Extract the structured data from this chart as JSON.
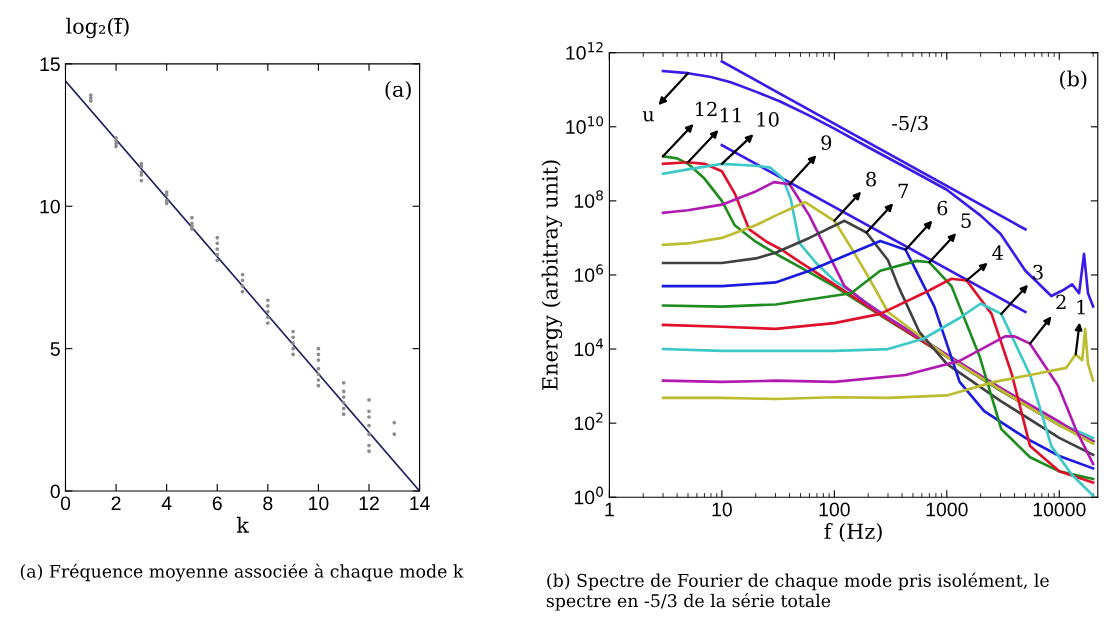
{
  "chart_data": [
    {
      "type": "scatter",
      "xlabel": "k",
      "ylabel": "log₂(f̄)",
      "xlim": [
        0,
        14
      ],
      "ylim": [
        0,
        15
      ],
      "xticks": [
        0,
        2,
        4,
        6,
        8,
        10,
        12,
        14
      ],
      "yticks": [
        0,
        5,
        10,
        15
      ],
      "grid": false,
      "legend": false,
      "annotations": [
        "(a)",
        "(a) Fréquence moyenne associée à chaque mode k"
      ],
      "series": [
        {
          "type": "scatter",
          "marker": "circle",
          "color": "#8c8c8c",
          "x": [
            1,
            1,
            1,
            2,
            2,
            2,
            2,
            3,
            3,
            3,
            3,
            3,
            4,
            4,
            4,
            4,
            5,
            5,
            5,
            5,
            6,
            6,
            6,
            6,
            6,
            7,
            7,
            7,
            7,
            8,
            8,
            8,
            8,
            8,
            9,
            9,
            9,
            9,
            9,
            10,
            10,
            10,
            10,
            10,
            10,
            10,
            11,
            11,
            11,
            11,
            11,
            11,
            12,
            12,
            12,
            12,
            12,
            12,
            12,
            13,
            13
          ],
          "values": [
            13.7,
            13.8,
            13.9,
            12.1,
            12.2,
            12.3,
            12.4,
            10.9,
            11.1,
            11.2,
            11.4,
            11.5,
            10.1,
            10.2,
            10.4,
            10.5,
            9.2,
            9.3,
            9.4,
            9.6,
            8.1,
            8.3,
            8.5,
            8.7,
            8.9,
            7.0,
            7.2,
            7.4,
            7.6,
            5.9,
            6.1,
            6.3,
            6.5,
            6.7,
            4.8,
            5.0,
            5.2,
            5.4,
            5.6,
            3.7,
            3.9,
            4.1,
            4.3,
            4.6,
            4.8,
            5.0,
            2.7,
            2.9,
            3.1,
            3.3,
            3.5,
            3.8,
            1.4,
            1.6,
            2.0,
            2.3,
            2.6,
            2.8,
            3.2,
            2.0,
            2.4
          ]
        },
        {
          "type": "line",
          "color": "#1f1f5f",
          "x": [
            0,
            14
          ],
          "values": [
            14.4,
            0
          ]
        }
      ]
    },
    {
      "type": "line",
      "log": "xy",
      "xlabel": "f (Hz)",
      "ylabel": "Energy (arbitray unit)",
      "xlim": [
        1,
        22000
      ],
      "ylim": [
        1,
        1000000000000.0
      ],
      "grid": false,
      "legend": false,
      "xticks": [
        1,
        10,
        100,
        1000,
        10000
      ],
      "yticks": [
        {
          "value": 1,
          "label": "10$^{0}$"
        },
        {
          "value": 100,
          "label": "10$^{2}$"
        },
        {
          "value": 10000,
          "label": "10$^{4}$"
        },
        {
          "value": 1000000,
          "label": "10$^{6}$"
        },
        {
          "value": 100000000,
          "label": "10$^{8}$"
        },
        {
          "value": 10000000000,
          "label": "10$^{10}$"
        },
        {
          "value": 1000000000000,
          "label": "10$^{12}$"
        }
      ],
      "annotations": [
        "(b)",
        {
          "text": "u",
          "x": 5,
          "y": 280000000000.0
        },
        {
          "text": "12",
          "x": 3,
          "y": 1600000000.0
        },
        {
          "text": "11",
          "x": 5,
          "y": 1100000000.0
        },
        {
          "text": "10",
          "x": 10,
          "y": 1000000000.0
        },
        {
          "text": "9",
          "x": 40,
          "y": 280000000.0
        },
        {
          "text": "8",
          "x": 100,
          "y": 29000000.0
        },
        {
          "text": "7",
          "x": 193,
          "y": 14000000.0
        },
        {
          "text": "6",
          "x": 430,
          "y": 4800000.0
        },
        {
          "text": "5",
          "x": 700,
          "y": 2200000.0
        },
        {
          "text": "4",
          "x": 1500,
          "y": 710000.0
        },
        {
          "text": "3",
          "x": 3050,
          "y": 89000.0
        },
        {
          "text": "2",
          "x": 5500,
          "y": 14000.0
        },
        {
          "text": "1",
          "x": 14000,
          "y": 7200.0
        },
        "-5/3",
        "(b) Spectre de Fourier de chaque mode pris isolément, le spectre en -5/3 de la série totale"
      ],
      "series": [
        {
          "color": "#3a1ae8",
          "x": [
            3,
            5,
            8,
            12,
            20,
            33,
            60,
            100,
            200,
            500,
            1000,
            2000,
            3000,
            5000,
            8500,
            11000,
            13000,
            15000,
            16600,
            18000,
            20000
          ],
          "values": [
            320000000000.0,
            280000000000.0,
            220000000000.0,
            160000000000.0,
            89000000000.0,
            48000000000.0,
            20000000000.0,
            8900000000.0,
            2800000000.0,
            630000000.0,
            200000000.0,
            40000000.0,
            13000000.0,
            1300000.0,
            270000.0,
            400000.0,
            560000.0,
            320000.0,
            3700000.0,
            320000.0,
            140000.0
          ]
        },
        {
          "color": "#3a1ae8",
          "x": [
            10,
            5000
          ],
          "values": [
            580000000000.0,
            17000000.0
          ]
        },
        {
          "color": "#3a1ae8",
          "x": [
            10,
            5000
          ],
          "values": [
            3200000000.0,
            100000.0
          ]
        },
        {
          "color": "#1e8c1e",
          "x": [
            3,
            4,
            5,
            7,
            10,
            13,
            20,
            33,
            50,
            100,
            300,
            1000,
            3000,
            10000,
            20000
          ],
          "values": [
            1600000000.0,
            1400000000.0,
            1000000000.0,
            400000000.0,
            100000000.0,
            22000000.0,
            7900000.0,
            3200000.0,
            1600000.0,
            490000.0,
            60000.0,
            6200.0,
            760.0,
            89,
            32
          ]
        },
        {
          "color": "#e0102a",
          "x": [
            3,
            5,
            7,
            10,
            13,
            17.5,
            25,
            34,
            50,
            100,
            300,
            1000,
            3000,
            10000,
            20000
          ],
          "values": [
            1000000000.0,
            1100000000.0,
            1000000000.0,
            630000000.0,
            160000000.0,
            17000000.0,
            7900000.0,
            4800000.0,
            2200000.0,
            560000.0,
            63000.0,
            6300.0,
            790.0,
            89,
            32
          ]
        },
        {
          "color": "#3cc8c8",
          "x": [
            3,
            5,
            10,
            20,
            27,
            35,
            41,
            49,
            70,
            100,
            300,
            1000,
            3000,
            10000,
            20000
          ],
          "values": [
            540000000.0,
            710000000.0,
            1000000000.0,
            890000000.0,
            790000000.0,
            400000000.0,
            110000000.0,
            7200000.0,
            2000000.0,
            710000.0,
            71000.0,
            7100.0,
            890.0,
            100,
            40
          ]
        },
        {
          "color": "#b01ab0",
          "x": [
            3,
            5,
            10,
            20,
            29,
            40,
            60,
            123,
            200,
            300,
            1000,
            3000,
            10000,
            15000,
            20000
          ],
          "values": [
            48000000.0,
            56000000.0,
            79000000.0,
            180000000.0,
            320000000.0,
            280000000.0,
            40000000.0,
            500000.0,
            160000.0,
            71000.0,
            7100.0,
            890.0,
            110,
            50,
            32
          ]
        },
        {
          "color": "#bcbc30",
          "x": [
            3,
            5,
            10,
            20,
            30,
            55,
            100,
            150,
            205,
            300,
            1000,
            3000,
            10000,
            20000
          ],
          "values": [
            6500000.0,
            7100000.0,
            10000000.0,
            22000000.0,
            40000000.0,
            93000000.0,
            29000000.0,
            4000000.0,
            790000.0,
            100000.0,
            6300.0,
            790.0,
            89,
            28
          ]
        },
        {
          "color": "#404040",
          "x": [
            3,
            5,
            10,
            20,
            30,
            60,
            123,
            193,
            300,
            370,
            570,
            1000,
            3000,
            10000,
            20000
          ],
          "values": [
            2100000.0,
            2100000.0,
            2100000.0,
            2800000.0,
            4000000.0,
            10000000.0,
            29000000.0,
            14000000.0,
            2500000.0,
            500000.0,
            29000.0,
            4000.0,
            400,
            40,
            14
          ]
        },
        {
          "color": "#1a1ae0",
          "x": [
            3,
            10,
            30,
            60,
            100,
            256,
            430,
            775,
            1300,
            2150,
            5000,
            10000,
            20000
          ],
          "values": [
            500000.0,
            500000.0,
            630000.0,
            1300000.0,
            2500000.0,
            8300000.0,
            4800000.0,
            140000.0,
            1300.0,
            210,
            40,
            13,
            6
          ]
        },
        {
          "color": "#1e8c1e",
          "x": [
            3,
            10,
            30,
            141,
            256,
            540,
            700,
            1100,
            1970,
            3050,
            5500,
            10000,
            20000
          ],
          "values": [
            150000.0,
            140000.0,
            160000.0,
            320000.0,
            1300000.0,
            2400000.0,
            2200000.0,
            500000.0,
            6000.0,
            69,
            12,
            5,
            3.1
          ]
        },
        {
          "color": "#e0102a",
          "x": [
            3,
            10,
            30,
            100,
            256,
            620,
            1100,
            1500,
            2500,
            3800,
            5500,
            10000,
            20000
          ],
          "values": [
            45000.0,
            40000.0,
            35000.0,
            50000.0,
            89000.0,
            320000.0,
            790000.0,
            710000.0,
            89000.0,
            2000.0,
            24,
            5,
            2.5
          ]
        },
        {
          "color": "#3cc8c8",
          "x": [
            3,
            10,
            30,
            100,
            300,
            620,
            1300,
            2000,
            3050,
            5500,
            8500,
            13000,
            20000
          ],
          "values": [
            10000.0,
            8900.0,
            8900.0,
            8900.0,
            10000.0,
            19000.0,
            69000.0,
            170000.0,
            89000.0,
            2000.0,
            24,
            4,
            1.1
          ]
        },
        {
          "color": "#b01ab0",
          "x": [
            3,
            10,
            30,
            100,
            430,
            1300,
            3300,
            4000,
            5500,
            9800,
            14000,
            20000
          ],
          "values": [
            1400.0,
            1300.0,
            1400.0,
            1300.0,
            2000.0,
            4800.0,
            22000.0,
            22000.0,
            14000.0,
            1000.0,
            69,
            7.9
          ]
        },
        {
          "color": "#bcbc30",
          "x": [
            3,
            10,
            30,
            100,
            300,
            1000,
            2650,
            5500,
            11500,
            14000,
            16000,
            17000,
            18000,
            20000
          ],
          "values": [
            480,
            480,
            450,
            500,
            480,
            560,
            1300.0,
            2000.0,
            3100.0,
            7200.0,
            5000.0,
            35000.0,
            4000.0,
            1400.0
          ]
        }
      ]
    }
  ]
}
